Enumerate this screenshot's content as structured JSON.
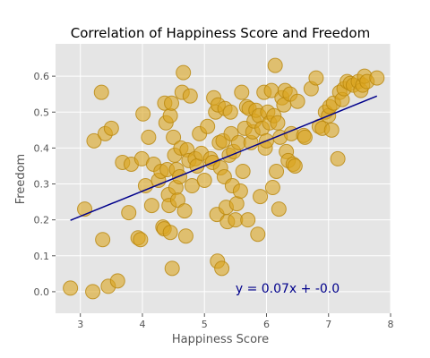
{
  "chart_data": {
    "type": "scatter",
    "title": "Correlation of Happiness Score and Freedom",
    "xlabel": "Happiness Score",
    "ylabel": "Freedom",
    "xlim": [
      2.6,
      8.0
    ],
    "ylim": [
      -0.06,
      0.69
    ],
    "xticks": [
      3,
      4,
      5,
      6,
      7,
      8
    ],
    "yticks": [
      0.0,
      0.1,
      0.2,
      0.3,
      0.4,
      0.5,
      0.6
    ],
    "xtick_labels": [
      "3",
      "4",
      "5",
      "6",
      "7",
      "8"
    ],
    "ytick_labels": [
      "0.0",
      "0.1",
      "0.2",
      "0.3",
      "0.4",
      "0.5",
      "0.6"
    ],
    "grid": true,
    "annotation": "y = 0.07x + -0.0",
    "regression": {
      "slope": 0.07,
      "intercept": -0.0,
      "x_range": [
        2.84,
        7.78
      ]
    },
    "colors": {
      "point_fill": "#DAA520",
      "point_stroke": "#B8860B",
      "line": "#00008B",
      "annotation": "#00008B",
      "plot_bg": "#E5E5E5",
      "grid": "#FFFFFF"
    },
    "points": [
      [
        2.84,
        0.01
      ],
      [
        3.07,
        0.23
      ],
      [
        3.2,
        0.0
      ],
      [
        3.22,
        0.42
      ],
      [
        3.34,
        0.555
      ],
      [
        3.36,
        0.145
      ],
      [
        3.4,
        0.44
      ],
      [
        3.45,
        0.015
      ],
      [
        3.5,
        0.455
      ],
      [
        3.6,
        0.03
      ],
      [
        3.68,
        0.36
      ],
      [
        3.78,
        0.22
      ],
      [
        3.82,
        0.355
      ],
      [
        3.93,
        0.15
      ],
      [
        3.97,
        0.145
      ],
      [
        3.99,
        0.37
      ],
      [
        4.01,
        0.495
      ],
      [
        4.05,
        0.295
      ],
      [
        4.1,
        0.43
      ],
      [
        4.15,
        0.24
      ],
      [
        4.18,
        0.355
      ],
      [
        4.26,
        0.31
      ],
      [
        4.3,
        0.335
      ],
      [
        4.33,
        0.18
      ],
      [
        4.35,
        0.175
      ],
      [
        4.36,
        0.525
      ],
      [
        4.38,
        0.47
      ],
      [
        4.4,
        0.34
      ],
      [
        4.42,
        0.27
      ],
      [
        4.43,
        0.24
      ],
      [
        4.45,
        0.49
      ],
      [
        4.45,
        0.165
      ],
      [
        4.47,
        0.525
      ],
      [
        4.48,
        0.065
      ],
      [
        4.5,
        0.43
      ],
      [
        4.52,
        0.38
      ],
      [
        4.54,
        0.29
      ],
      [
        4.55,
        0.34
      ],
      [
        4.57,
        0.255
      ],
      [
        4.6,
        0.32
      ],
      [
        4.62,
        0.4
      ],
      [
        4.64,
        0.555
      ],
      [
        4.66,
        0.61
      ],
      [
        4.68,
        0.225
      ],
      [
        4.7,
        0.155
      ],
      [
        4.72,
        0.395
      ],
      [
        4.75,
        0.365
      ],
      [
        4.77,
        0.545
      ],
      [
        4.8,
        0.295
      ],
      [
        4.85,
        0.37
      ],
      [
        4.88,
        0.35
      ],
      [
        4.92,
        0.44
      ],
      [
        4.95,
        0.385
      ],
      [
        5.0,
        0.31
      ],
      [
        5.05,
        0.46
      ],
      [
        5.1,
        0.37
      ],
      [
        5.13,
        0.36
      ],
      [
        5.15,
        0.54
      ],
      [
        5.18,
        0.5
      ],
      [
        5.2,
        0.215
      ],
      [
        5.21,
        0.085
      ],
      [
        5.22,
        0.52
      ],
      [
        5.24,
        0.415
      ],
      [
        5.26,
        0.345
      ],
      [
        5.28,
        0.065
      ],
      [
        5.3,
        0.42
      ],
      [
        5.32,
        0.32
      ],
      [
        5.33,
        0.51
      ],
      [
        5.35,
        0.235
      ],
      [
        5.37,
        0.195
      ],
      [
        5.4,
        0.38
      ],
      [
        5.42,
        0.5
      ],
      [
        5.43,
        0.44
      ],
      [
        5.45,
        0.295
      ],
      [
        5.47,
        0.39
      ],
      [
        5.5,
        0.2
      ],
      [
        5.52,
        0.245
      ],
      [
        5.55,
        0.415
      ],
      [
        5.58,
        0.28
      ],
      [
        5.6,
        0.555
      ],
      [
        5.62,
        0.335
      ],
      [
        5.65,
        0.455
      ],
      [
        5.68,
        0.515
      ],
      [
        5.7,
        0.2
      ],
      [
        5.72,
        0.51
      ],
      [
        5.75,
        0.415
      ],
      [
        5.78,
        0.445
      ],
      [
        5.8,
        0.475
      ],
      [
        5.83,
        0.505
      ],
      [
        5.86,
        0.16
      ],
      [
        5.88,
        0.49
      ],
      [
        5.9,
        0.265
      ],
      [
        5.93,
        0.455
      ],
      [
        5.96,
        0.555
      ],
      [
        5.98,
        0.4
      ],
      [
        6.0,
        0.42
      ],
      [
        6.02,
        0.5
      ],
      [
        6.05,
        0.47
      ],
      [
        6.08,
        0.56
      ],
      [
        6.1,
        0.29
      ],
      [
        6.12,
        0.49
      ],
      [
        6.14,
        0.63
      ],
      [
        6.16,
        0.335
      ],
      [
        6.18,
        0.47
      ],
      [
        6.2,
        0.23
      ],
      [
        6.22,
        0.43
      ],
      [
        6.25,
        0.54
      ],
      [
        6.28,
        0.52
      ],
      [
        6.3,
        0.56
      ],
      [
        6.32,
        0.39
      ],
      [
        6.35,
        0.365
      ],
      [
        6.38,
        0.55
      ],
      [
        6.4,
        0.44
      ],
      [
        6.43,
        0.355
      ],
      [
        6.46,
        0.35
      ],
      [
        6.5,
        0.53
      ],
      [
        6.6,
        0.435
      ],
      [
        6.62,
        0.43
      ],
      [
        6.72,
        0.565
      ],
      [
        6.8,
        0.595
      ],
      [
        6.85,
        0.46
      ],
      [
        6.9,
        0.455
      ],
      [
        6.95,
        0.5
      ],
      [
        7.0,
        0.49
      ],
      [
        7.02,
        0.515
      ],
      [
        7.05,
        0.45
      ],
      [
        7.08,
        0.525
      ],
      [
        7.15,
        0.37
      ],
      [
        7.18,
        0.555
      ],
      [
        7.22,
        0.535
      ],
      [
        7.25,
        0.565
      ],
      [
        7.3,
        0.585
      ],
      [
        7.35,
        0.58
      ],
      [
        7.4,
        0.575
      ],
      [
        7.48,
        0.585
      ],
      [
        7.52,
        0.56
      ],
      [
        7.55,
        0.575
      ],
      [
        7.58,
        0.6
      ],
      [
        7.62,
        0.585
      ],
      [
        7.78,
        0.595
      ]
    ]
  }
}
